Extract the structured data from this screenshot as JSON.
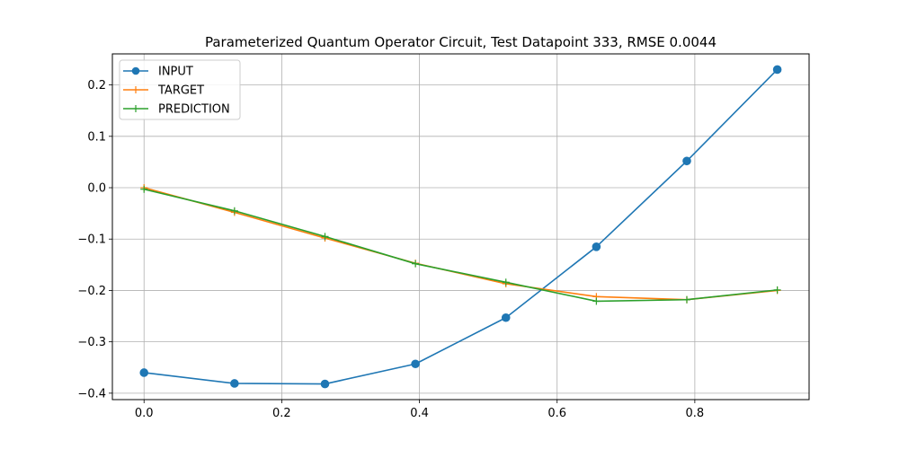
{
  "chart_data": {
    "type": "line",
    "title": "Parameterized Quantum Operator Circuit, Test Datapoint 333, RMSE 0.0044",
    "xlabel": "",
    "ylabel": "",
    "xlim": [
      -0.046,
      0.966
    ],
    "ylim": [
      -0.4125,
      0.2605
    ],
    "xticks": [
      0.0,
      0.2,
      0.4,
      0.6,
      0.8
    ],
    "xtick_labels": [
      "0.0",
      "0.2",
      "0.4",
      "0.6",
      "0.8"
    ],
    "yticks": [
      -0.4,
      -0.3,
      -0.2,
      -0.1,
      0.0,
      0.1,
      0.2
    ],
    "ytick_labels": [
      "−0.4",
      "−0.3",
      "−0.2",
      "−0.1",
      "0.0",
      "0.1",
      "0.2"
    ],
    "grid": true,
    "legend_position": "upper-left",
    "x": [
      0.0,
      0.1314,
      0.2628,
      0.3942,
      0.5256,
      0.657,
      0.7884,
      0.9198
    ],
    "series": [
      {
        "name": "INPUT",
        "color": "#1f77b4",
        "marker": "circle",
        "values": [
          -0.36,
          -0.381,
          -0.382,
          -0.343,
          -0.253,
          -0.115,
          0.052,
          0.23
        ]
      },
      {
        "name": "TARGET",
        "color": "#ff7f0e",
        "marker": "plus",
        "values": [
          0.0,
          -0.048,
          -0.098,
          -0.147,
          -0.187,
          -0.212,
          -0.218,
          -0.2
        ]
      },
      {
        "name": "PREDICTION",
        "color": "#2ca02c",
        "marker": "plus",
        "values": [
          -0.003,
          -0.045,
          -0.095,
          -0.148,
          -0.184,
          -0.221,
          -0.218,
          -0.199
        ]
      }
    ]
  }
}
